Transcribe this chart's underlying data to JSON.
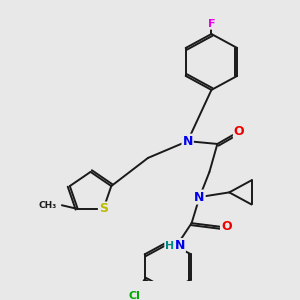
{
  "background_color": "#e8e8e8",
  "bond_color": "#1a1a1a",
  "atom_colors": {
    "N": "#0000ee",
    "O": "#ee0000",
    "S": "#bbbb00",
    "F": "#ee00ee",
    "Cl": "#00aa00",
    "H": "#008888",
    "C": "#1a1a1a"
  },
  "figsize": [
    3.0,
    3.0
  ],
  "dpi": 100
}
